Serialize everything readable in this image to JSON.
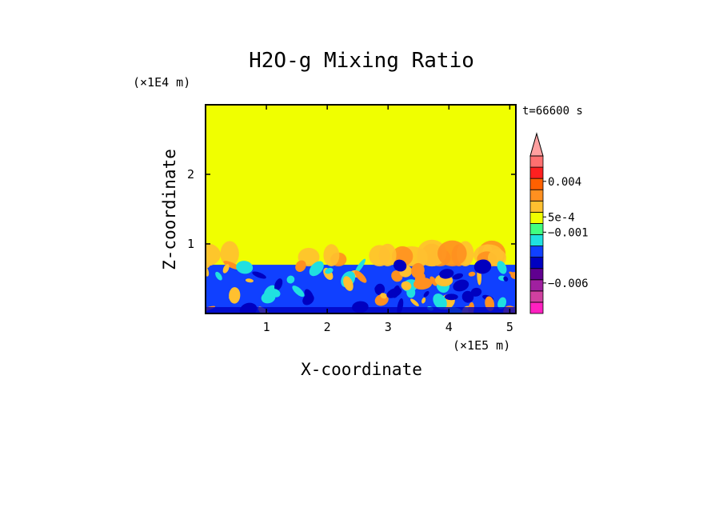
{
  "chart_data": {
    "type": "heatmap",
    "title": "H2O-g Mixing Ratio",
    "xlabel": "X-coordinate",
    "ylabel": "Z-coordinate",
    "x_scale_label": "(×1E5 m)",
    "y_scale_label": "(×1E4 m)",
    "time_label": "t=66600 s",
    "xlim": [
      0,
      5.1
    ],
    "ylim": [
      0,
      3.0
    ],
    "x_ticks": [
      1,
      2,
      3,
      4,
      5
    ],
    "y_ticks": [
      1,
      2
    ],
    "colorbar": {
      "labels": [
        {
          "text": "0.004",
          "value": 0.004
        },
        {
          "text": "5e-4",
          "value": 0.0005
        },
        {
          "text": "−0.001",
          "value": -0.001
        },
        {
          "text": "−0.006",
          "value": -0.006
        }
      ],
      "bins": [
        {
          "color": "#ff20c0"
        },
        {
          "color": "#d040a0"
        },
        {
          "color": "#a020a0"
        },
        {
          "color": "#600090"
        },
        {
          "color": "#0000c0"
        },
        {
          "color": "#1040ff"
        },
        {
          "color": "#20e0e0"
        },
        {
          "color": "#40ff80"
        },
        {
          "color": "#f0ff00"
        },
        {
          "color": "#ffc030"
        },
        {
          "color": "#ff9020"
        },
        {
          "color": "#ff6000"
        },
        {
          "color": "#ff2020"
        },
        {
          "color": "#ff7070"
        }
      ],
      "extend_top_color": "#ffa0a0"
    },
    "field": {
      "background_color": "#f0ff00",
      "boundary_layer_top_z": 0.7,
      "plume_top_z": 1.05,
      "layer_colors": [
        "#1040ff",
        "#20e0e0",
        "#ffc030",
        "#ff9020",
        "#0000c0"
      ]
    }
  }
}
